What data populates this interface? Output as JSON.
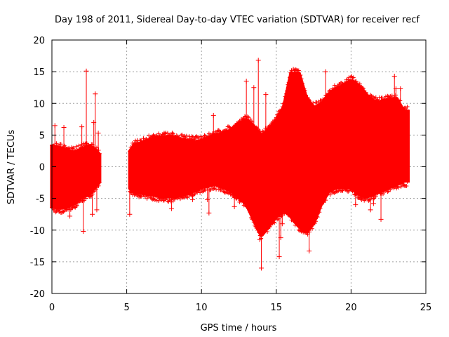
{
  "chart_data": {
    "type": "scatter",
    "title": "Day 198 of 2011, Sidereal Day-to-day VTEC variation (SDTVAR) for receiver recf",
    "xlabel": "GPS time / hours",
    "ylabel": "SDTVAR / TECUs",
    "xlim": [
      0,
      25
    ],
    "ylim": [
      -20,
      20
    ],
    "xticks": [
      0,
      5,
      10,
      15,
      20,
      25
    ],
    "yticks": [
      -20,
      -15,
      -10,
      -5,
      0,
      5,
      10,
      15,
      20
    ],
    "xtick_labels": [
      "0",
      "5",
      "10",
      "15",
      "20",
      "25"
    ],
    "ytick_labels": [
      "-20",
      "-15",
      "-10",
      "-5",
      "0",
      "5",
      "10",
      "15",
      "20"
    ],
    "grid": true,
    "series_color": "#ff0000",
    "marker": "plus",
    "envelope": {
      "x": [
        0.0,
        0.5,
        1.0,
        1.5,
        2.0,
        2.5,
        3.0,
        3.2,
        5.2,
        5.5,
        6.0,
        6.5,
        7.0,
        7.5,
        8.0,
        8.5,
        9.0,
        9.5,
        10.0,
        10.5,
        11.0,
        11.5,
        12.0,
        12.5,
        13.0,
        13.5,
        14.0,
        14.5,
        15.0,
        15.5,
        16.0,
        16.5,
        17.0,
        17.5,
        18.0,
        18.5,
        19.0,
        19.5,
        20.0,
        20.5,
        21.0,
        21.5,
        22.0,
        22.5,
        23.0,
        23.5,
        23.8
      ],
      "upper": [
        3.5,
        3.2,
        2.8,
        2.5,
        3.0,
        3.5,
        2.5,
        2.0,
        2.5,
        3.5,
        4.0,
        4.4,
        4.8,
        5.0,
        4.9,
        4.6,
        4.4,
        4.2,
        4.3,
        4.8,
        5.2,
        5.5,
        6.0,
        7.0,
        7.6,
        6.5,
        5.0,
        6.0,
        7.5,
        9.5,
        15.0,
        15.0,
        11.0,
        9.5,
        10.0,
        11.5,
        12.5,
        13.0,
        13.8,
        13.0,
        11.5,
        10.5,
        10.5,
        10.8,
        11.0,
        9.0,
        9.0
      ],
      "lower": [
        -6.5,
        -6.8,
        -6.5,
        -6.0,
        -5.0,
        -4.5,
        -3.0,
        -2.5,
        -3.5,
        -4.2,
        -4.4,
        -4.6,
        -4.8,
        -5.0,
        -5.0,
        -4.8,
        -4.5,
        -4.0,
        -3.5,
        -3.2,
        -3.0,
        -3.5,
        -4.0,
        -5.0,
        -6.0,
        -8.5,
        -11.0,
        -9.5,
        -8.0,
        -7.0,
        -8.0,
        -9.5,
        -10.5,
        -9.0,
        -6.0,
        -4.0,
        -3.5,
        -3.5,
        -3.5,
        -4.5,
        -5.0,
        -4.5,
        -4.0,
        -3.5,
        -3.0,
        -2.5,
        -2.5
      ]
    },
    "gaps": [
      [
        3.2,
        5.2
      ]
    ],
    "outliers": [
      [
        0.2,
        6.5
      ],
      [
        0.8,
        6.2
      ],
      [
        1.2,
        -7.8
      ],
      [
        2.0,
        6.3
      ],
      [
        2.1,
        -10.2
      ],
      [
        2.3,
        15.1
      ],
      [
        2.8,
        7.0
      ],
      [
        2.9,
        11.5
      ],
      [
        3.1,
        5.3
      ],
      [
        3.0,
        -6.8
      ],
      [
        2.7,
        -7.5
      ],
      [
        5.2,
        -7.5
      ],
      [
        8.0,
        -6.6
      ],
      [
        9.4,
        -5.2
      ],
      [
        10.0,
        4.0
      ],
      [
        10.4,
        -5.2
      ],
      [
        10.5,
        -7.3
      ],
      [
        10.8,
        8.1
      ],
      [
        12.2,
        -6.3
      ],
      [
        13.0,
        13.5
      ],
      [
        13.5,
        12.5
      ],
      [
        13.8,
        16.8
      ],
      [
        14.0,
        -16.0
      ],
      [
        13.9,
        -11.5
      ],
      [
        14.3,
        11.4
      ],
      [
        15.2,
        -14.2
      ],
      [
        15.3,
        -11.2
      ],
      [
        15.4,
        -9.0
      ],
      [
        16.0,
        -7.8
      ],
      [
        17.2,
        -13.3
      ],
      [
        18.3,
        15.0
      ],
      [
        19.2,
        -2.8
      ],
      [
        20.7,
        -5.2
      ],
      [
        21.3,
        -6.8
      ],
      [
        22.0,
        -8.3
      ],
      [
        22.9,
        14.3
      ],
      [
        23.0,
        12.3
      ],
      [
        23.3,
        12.3
      ],
      [
        21.5,
        -5.8
      ],
      [
        20.3,
        -6.0
      ]
    ]
  }
}
